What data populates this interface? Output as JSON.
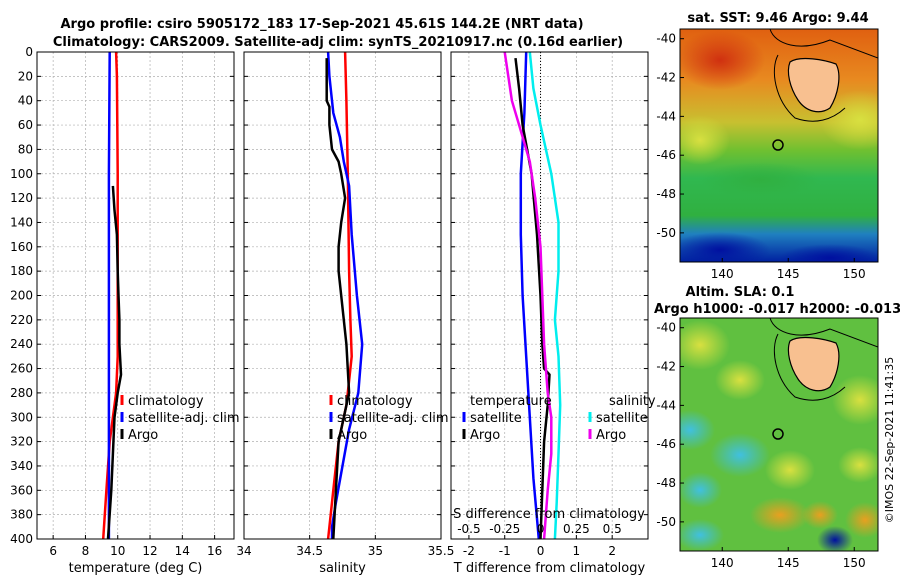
{
  "figure": {
    "title_line1": "Argo profile: csiro 5905172_183 17-Sep-2021 45.61S 144.2E (NRT data)",
    "title_line2": "Climatology: CARS2009. Satellite-adj clim: synTS_20210917.nc (0.16d earlier)",
    "watermark": "©IMOS 22-Sep-2021 11:41:35"
  },
  "colors": {
    "climatology": "#ff0000",
    "satellite": "#0000ff",
    "argo": "#000000",
    "sal_satellite": "#00eeee",
    "sal_argo": "#ee00ee",
    "grid": "#b0b0b0"
  },
  "chart_data": [
    {
      "id": "temperature",
      "type": "line",
      "xlabel": "temperature (deg C)",
      "ylabel": "",
      "xlim": [
        5,
        17.2
      ],
      "ylim": [
        0,
        400
      ],
      "xticks": [
        6,
        8,
        10,
        12,
        14,
        16
      ],
      "xtick_labels": [
        "6",
        "8",
        "10",
        "12",
        "14",
        "16"
      ],
      "yticks": [
        0,
        20,
        40,
        60,
        80,
        100,
        120,
        140,
        160,
        180,
        200,
        220,
        240,
        260,
        280,
        300,
        320,
        340,
        360,
        380,
        400
      ],
      "y_reversed": true,
      "grid": true,
      "legend": {
        "entries": [
          "climatology",
          "satellite-adj. clim",
          "Argo"
        ],
        "placement": "lower-right"
      },
      "series": [
        {
          "name": "climatology",
          "color": "#ff0000",
          "x": [
            9.9,
            9.95,
            10.0,
            10.0,
            10.0,
            9.9,
            9.7,
            9.5,
            9.3,
            9.1
          ],
          "y": [
            0,
            20,
            100,
            200,
            250,
            280,
            300,
            320,
            360,
            400
          ]
        },
        {
          "name": "satellite-adj. clim",
          "color": "#0000ff",
          "x": [
            9.5,
            9.45,
            9.45,
            9.45,
            9.45
          ],
          "y": [
            0,
            100,
            200,
            300,
            400
          ]
        },
        {
          "name": "Argo",
          "color": "#000000",
          "x": [
            9.7,
            9.8,
            9.95,
            10.0,
            10.05,
            10.1,
            10.1,
            10.2,
            10.0,
            9.8,
            9.7,
            9.6,
            9.4
          ],
          "y": [
            110,
            130,
            150,
            180,
            200,
            220,
            240,
            265,
            280,
            300,
            330,
            360,
            400
          ]
        }
      ]
    },
    {
      "id": "salinity",
      "type": "line",
      "xlabel": "salinity",
      "ylabel": "",
      "xlim": [
        34,
        35.5
      ],
      "ylim": [
        0,
        400
      ],
      "xticks": [
        34,
        34.5,
        35,
        35.5
      ],
      "xtick_labels": [
        "34",
        "34.5",
        "35",
        "35.5"
      ],
      "y_reversed": true,
      "grid": true,
      "legend": {
        "entries": [
          "climatology",
          "satellite-adj. clim",
          "Argo"
        ],
        "placement": "lower-right"
      },
      "series": [
        {
          "name": "climatology",
          "color": "#ff0000",
          "x": [
            34.77,
            34.78,
            34.79,
            34.8,
            34.81,
            34.82,
            34.8,
            34.78,
            34.72,
            34.68,
            34.64
          ],
          "y": [
            0,
            40,
            100,
            180,
            220,
            250,
            270,
            290,
            320,
            360,
            400
          ]
        },
        {
          "name": "satellite-adj. clim",
          "color": "#0000ff",
          "x": [
            34.64,
            34.65,
            34.68,
            34.73,
            34.76,
            34.8,
            34.82,
            34.86,
            34.9,
            34.87,
            34.8,
            34.75,
            34.7,
            34.67,
            34.67
          ],
          "y": [
            0,
            20,
            50,
            70,
            90,
            110,
            150,
            200,
            240,
            280,
            310,
            340,
            370,
            390,
            400
          ]
        },
        {
          "name": "Argo",
          "color": "#000000",
          "x": [
            34.63,
            34.63,
            34.65,
            34.65,
            34.67,
            34.72,
            34.74,
            34.77,
            34.74,
            34.72,
            34.72,
            34.74,
            34.78,
            34.8,
            34.76,
            34.72,
            34.7,
            34.68
          ],
          "y": [
            5,
            40,
            45,
            60,
            80,
            90,
            100,
            120,
            140,
            160,
            180,
            200,
            240,
            280,
            300,
            320,
            360,
            400
          ]
        }
      ]
    },
    {
      "id": "difference",
      "type": "line",
      "xlabel": "T difference from climatology",
      "ylabel": "",
      "xlim": [
        -2.5,
        3
      ],
      "ylim": [
        0,
        400
      ],
      "xticks": [
        -2,
        -1,
        0,
        1,
        2
      ],
      "xtick_labels": [
        "-2",
        "-1",
        "0",
        "1",
        "2"
      ],
      "top_axis_title": "S difference from climatology",
      "top_xtick_labels": [
        "-0.5",
        "-0.25",
        "0",
        "0.25",
        "0.5"
      ],
      "top_xticks_in_T_units": [
        -2,
        -1,
        0,
        1,
        2
      ],
      "y_reversed": true,
      "grid": true,
      "legend_temperature": {
        "title": "temperature",
        "entries": [
          "satellite",
          "Argo"
        ],
        "placement": "lower-left"
      },
      "legend_salinity": {
        "title": "salinity",
        "entries": [
          "satellite",
          "Argo"
        ],
        "placement": "lower-right"
      },
      "series": [
        {
          "name": "temperature satellite",
          "color": "#0000ff",
          "x": [
            -0.4,
            -0.45,
            -0.55,
            -0.55,
            -0.5,
            -0.4,
            -0.3,
            -0.2,
            -0.05
          ],
          "y": [
            0,
            50,
            100,
            150,
            200,
            250,
            300,
            350,
            400
          ]
        },
        {
          "name": "temperature Argo",
          "color": "#000000",
          "x": [
            -0.7,
            -0.6,
            -0.5,
            -0.25,
            -0.1,
            0.0,
            0.05,
            0.1,
            0.25,
            0.2,
            0.1,
            0.05,
            0.0
          ],
          "y": [
            5,
            30,
            60,
            100,
            150,
            200,
            240,
            260,
            265,
            290,
            320,
            360,
            400
          ]
        },
        {
          "name": "salinity satellite",
          "color": "#00eeee",
          "x": [
            -0.3,
            -0.2,
            0.0,
            0.3,
            0.5,
            0.5,
            0.4,
            0.5,
            0.55,
            0.5,
            0.45,
            0.4
          ],
          "y": [
            0,
            30,
            60,
            100,
            140,
            180,
            220,
            250,
            290,
            330,
            370,
            400
          ]
        },
        {
          "name": "salinity Argo",
          "color": "#ee00ee",
          "x": [
            -1.0,
            -0.9,
            -0.8,
            -0.6,
            -0.3,
            -0.15,
            0.0,
            0.05,
            0.1,
            0.2,
            0.3,
            0.3,
            0.2,
            0.1
          ],
          "y": [
            0,
            20,
            40,
            60,
            90,
            120,
            160,
            200,
            240,
            280,
            300,
            330,
            360,
            400
          ]
        }
      ]
    },
    {
      "id": "sst_map",
      "type": "heatmap",
      "title": "sat. SST: 9.46 Argo: 9.44",
      "xlim": [
        136.8,
        151.8
      ],
      "ylim": [
        -51.5,
        -39.5
      ],
      "xticks": [
        140,
        145,
        150
      ],
      "xtick_labels": [
        "140",
        "145",
        "150"
      ],
      "yticks": [
        -40,
        -42,
        -44,
        -46,
        -48,
        -50
      ],
      "ytick_labels": [
        "-40",
        "-42",
        "-44",
        "-46",
        "-48",
        "-50"
      ],
      "profile_location": [
        144.2,
        -45.61
      ]
    },
    {
      "id": "sla_map",
      "type": "heatmap",
      "title": "Altim. SLA: 0.1",
      "subtitle": "Argo h1000: -0.017 h2000: -0.013",
      "xlim": [
        136.8,
        151.8
      ],
      "ylim": [
        -51.5,
        -39.5
      ],
      "xticks": [
        140,
        145,
        150
      ],
      "xtick_labels": [
        "140",
        "145",
        "150"
      ],
      "yticks": [
        -40,
        -42,
        -44,
        -46,
        -48,
        -50
      ],
      "ytick_labels": [
        "-40",
        "-42",
        "-44",
        "-46",
        "-48",
        "-50"
      ],
      "profile_location": [
        144.2,
        -45.61
      ]
    }
  ]
}
